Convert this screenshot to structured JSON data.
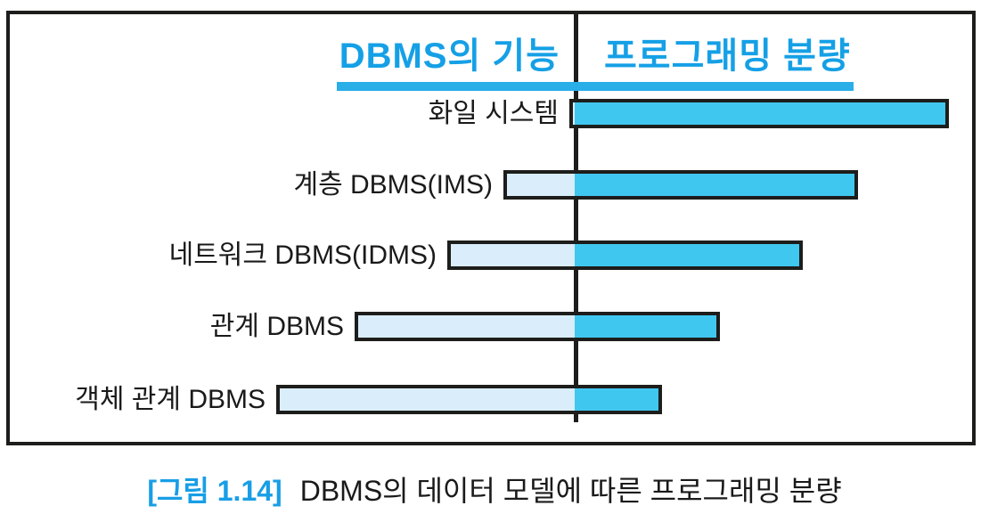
{
  "chart_data": {
    "type": "bar",
    "orientation": "horizontal-diverging",
    "column_headers": [
      "DBMS의 기능",
      "프로그래밍 분량"
    ],
    "unit": "relative length (estimated px from figure)",
    "legend_position": "top",
    "grid": false,
    "rows": [
      {
        "label": "화일 시스템",
        "dbms_function": 6,
        "programming": 420
      },
      {
        "label": "계층 DBMS(IMS)",
        "dbms_function": 80,
        "programming": 318
      },
      {
        "label": "네트워크 DBMS(IDMS)",
        "dbms_function": 143,
        "programming": 256
      },
      {
        "label": "관계 DBMS",
        "dbms_function": 247,
        "programming": 163
      },
      {
        "label": "객체 관계 DBMS",
        "dbms_function": 335,
        "programming": 98
      }
    ],
    "colors": {
      "dbms_function_fill": "#d9edfb",
      "programming_fill": "#40c7f0",
      "bar_border": "#1d1d1b",
      "frame_border": "#1d1d1b",
      "header_text": "#15a0e6",
      "header_underline": "#29aee8",
      "caption_tag": "#189ee6",
      "label_text": "#1a1a1a"
    }
  },
  "caption": {
    "tag": "[그림 1.14]",
    "text": "DBMS의 데이터 모델에 따른 프로그래밍 분량"
  }
}
